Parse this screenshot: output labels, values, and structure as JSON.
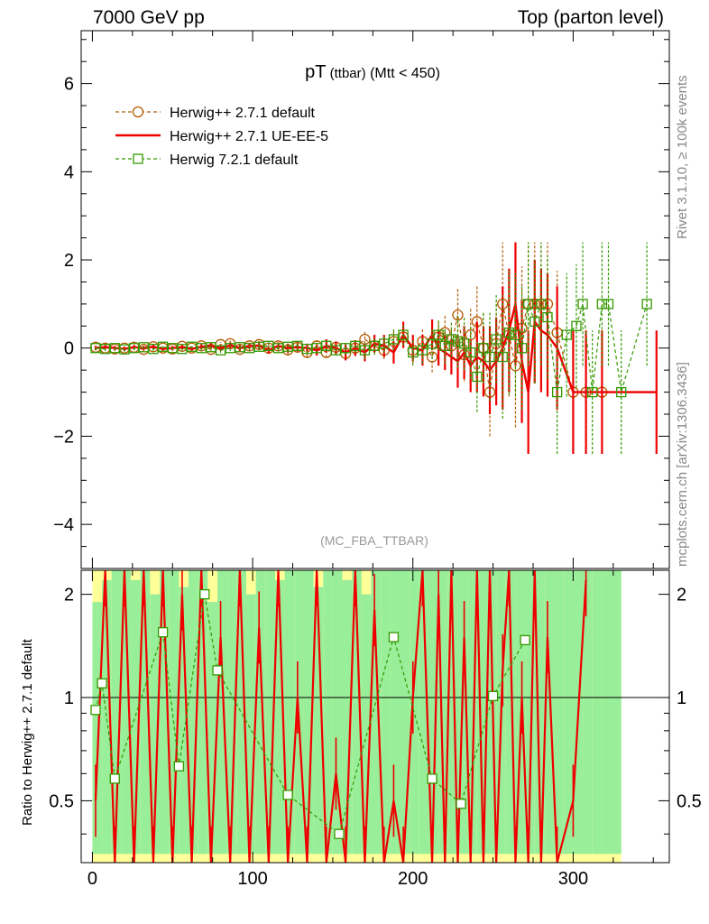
{
  "header": {
    "left": "7000 GeV pp",
    "right": "Top (parton level)"
  },
  "side_labels": {
    "rivet": "Rivet 3.1.10, ≥ 100k events",
    "mcplots": "mcplots.cern.ch [arXiv:1306.3436]"
  },
  "chart_data": [
    {
      "type": "line",
      "panel": "main",
      "title_main": "pT",
      "title_paren": "(ttbar)",
      "title_suffix": "(Mtt < 450)",
      "analysis_label": "(MC_FBA_TTBAR)",
      "xlim": [
        -7,
        360
      ],
      "ylim": [
        -5,
        7.2
      ],
      "yticks": [
        -4,
        -2,
        0,
        2,
        4,
        6
      ],
      "yticklabels": [
        "−4",
        "−2",
        "0",
        "2",
        "4",
        "6"
      ],
      "series": [
        {
          "name": "Herwig++ 2.7.1 default",
          "color": "#b35900",
          "style": "dashed-circle",
          "x": [
            2,
            8,
            14,
            20,
            26,
            32,
            38,
            44,
            50,
            56,
            62,
            68,
            74,
            80,
            86,
            92,
            98,
            104,
            110,
            116,
            122,
            128,
            134,
            140,
            146,
            152,
            158,
            164,
            170,
            176,
            182,
            188,
            194,
            200,
            206,
            212,
            216,
            220,
            224,
            228,
            232,
            236,
            240,
            244,
            248,
            252,
            256,
            260,
            264,
            268,
            272,
            276,
            280,
            284,
            290,
            300,
            308,
            318
          ],
          "y": [
            0.02,
            0.0,
            -0.02,
            0.0,
            0.02,
            -0.03,
            0.03,
            0.0,
            -0.02,
            0.04,
            0.0,
            0.05,
            -0.03,
            0.08,
            0.1,
            -0.03,
            0.05,
            0.08,
            0.0,
            0.05,
            -0.04,
            0.02,
            -0.1,
            0.05,
            -0.1,
            0.02,
            -0.12,
            0.0,
            0.2,
            0.05,
            -0.05,
            0.15,
            0.25,
            -0.05,
            0.15,
            -0.2,
            0.25,
            0.35,
            0.05,
            0.75,
            -0.15,
            0.3,
            0.6,
            0.0,
            -1.0,
            0.1,
            1.0,
            0.3,
            -0.4,
            0.45,
            1.0,
            1.0,
            1.0,
            1.0,
            0.35,
            -1.0,
            -1.0,
            -1.0
          ],
          "err": [
            0.05,
            0.05,
            0.05,
            0.05,
            0.05,
            0.05,
            0.05,
            0.05,
            0.05,
            0.05,
            0.05,
            0.06,
            0.06,
            0.06,
            0.07,
            0.07,
            0.07,
            0.08,
            0.08,
            0.08,
            0.1,
            0.1,
            0.1,
            0.12,
            0.12,
            0.12,
            0.15,
            0.15,
            0.2,
            0.2,
            0.2,
            0.25,
            0.25,
            0.3,
            0.3,
            0.35,
            0.35,
            0.4,
            0.4,
            0.6,
            0.6,
            0.6,
            0.8,
            0.8,
            1.0,
            1.0,
            1.4,
            1.4,
            1.4,
            1.4,
            1.4,
            1.4,
            1.4,
            1.4,
            1.4,
            1.4,
            1.4,
            1.4
          ]
        },
        {
          "name": "Herwig++ 2.7.1 UE-EE-5",
          "color": "#ee0000",
          "style": "solid",
          "x": [
            2,
            8,
            14,
            20,
            26,
            32,
            38,
            44,
            50,
            56,
            62,
            68,
            74,
            80,
            86,
            92,
            98,
            104,
            110,
            116,
            122,
            128,
            134,
            140,
            146,
            152,
            158,
            164,
            170,
            176,
            182,
            188,
            194,
            200,
            206,
            212,
            216,
            220,
            224,
            228,
            232,
            236,
            240,
            244,
            248,
            252,
            256,
            260,
            264,
            268,
            272,
            276,
            280,
            284,
            290,
            300,
            308,
            318,
            352
          ],
          "y": [
            0.0,
            0.02,
            0.0,
            -0.02,
            0.02,
            0.0,
            0.03,
            -0.02,
            0.0,
            0.02,
            -0.02,
            0.03,
            0.05,
            0.0,
            0.06,
            0.0,
            0.05,
            0.05,
            -0.05,
            0.05,
            0.0,
            0.02,
            0.0,
            -0.05,
            0.05,
            0.0,
            -0.1,
            0.0,
            -0.1,
            0.1,
            0.05,
            -0.1,
            0.3,
            0.0,
            -0.05,
            0.3,
            0.0,
            -0.1,
            -0.2,
            -0.3,
            -0.1,
            -0.4,
            -0.2,
            -0.3,
            -0.5,
            -0.3,
            0.0,
            0.4,
            1.0,
            -0.3,
            -1.0,
            0.6,
            0.4,
            0.3,
            0.0,
            -1.0,
            -1.0,
            -1.0,
            -1.0
          ],
          "err": [
            0.05,
            0.05,
            0.05,
            0.05,
            0.05,
            0.05,
            0.05,
            0.05,
            0.05,
            0.05,
            0.05,
            0.06,
            0.06,
            0.06,
            0.07,
            0.07,
            0.07,
            0.08,
            0.08,
            0.08,
            0.1,
            0.1,
            0.1,
            0.12,
            0.15,
            0.15,
            0.18,
            0.18,
            0.2,
            0.2,
            0.25,
            0.25,
            0.3,
            0.3,
            0.35,
            0.35,
            0.4,
            0.4,
            0.4,
            0.6,
            0.6,
            0.6,
            0.8,
            0.8,
            1.0,
            1.0,
            1.4,
            1.4,
            1.4,
            1.4,
            1.4,
            1.4,
            1.4,
            1.4,
            1.4,
            1.4,
            1.4,
            1.4,
            1.4
          ]
        },
        {
          "name": "Herwig 7.2.1 default",
          "color": "#339900",
          "style": "dashed-square",
          "x": [
            2,
            8,
            14,
            20,
            26,
            32,
            38,
            44,
            50,
            56,
            62,
            68,
            74,
            80,
            86,
            92,
            98,
            104,
            110,
            116,
            122,
            128,
            134,
            140,
            146,
            152,
            158,
            164,
            170,
            176,
            182,
            188,
            194,
            200,
            206,
            212,
            216,
            220,
            224,
            228,
            232,
            236,
            240,
            244,
            248,
            252,
            256,
            260,
            264,
            268,
            272,
            276,
            280,
            284,
            290,
            296,
            302,
            306,
            312,
            318,
            322,
            330,
            346
          ],
          "y": [
            0.0,
            -0.02,
            0.0,
            -0.03,
            0.0,
            0.02,
            -0.02,
            0.03,
            0.0,
            -0.02,
            0.03,
            0.0,
            0.02,
            -0.05,
            0.0,
            0.02,
            0.0,
            0.03,
            0.05,
            0.0,
            0.03,
            0.05,
            -0.02,
            0.0,
            0.05,
            -0.05,
            0.0,
            0.05,
            -0.05,
            0.05,
            0.1,
            0.2,
            0.3,
            -0.1,
            -0.05,
            0.1,
            0.3,
            0.05,
            0.2,
            0.15,
            0.1,
            -0.1,
            -0.65,
            0.0,
            -0.2,
            0.2,
            -0.2,
            0.35,
            0.3,
            0.0,
            1.0,
            0.6,
            1.0,
            0.7,
            -1.0,
            0.3,
            0.5,
            1.0,
            -1.0,
            1.0,
            1.0,
            -1.0,
            1.0
          ],
          "err": [
            0.05,
            0.05,
            0.05,
            0.05,
            0.05,
            0.05,
            0.05,
            0.05,
            0.05,
            0.05,
            0.05,
            0.06,
            0.06,
            0.06,
            0.07,
            0.07,
            0.07,
            0.08,
            0.08,
            0.08,
            0.1,
            0.1,
            0.1,
            0.12,
            0.12,
            0.12,
            0.15,
            0.15,
            0.2,
            0.2,
            0.2,
            0.25,
            0.25,
            0.3,
            0.3,
            0.35,
            0.35,
            0.4,
            0.4,
            0.6,
            0.6,
            0.6,
            0.8,
            0.8,
            1.0,
            1.0,
            1.4,
            1.4,
            1.4,
            1.4,
            1.4,
            1.4,
            1.4,
            1.4,
            1.4,
            1.4,
            1.4,
            1.4,
            1.4,
            1.4,
            1.4,
            1.4,
            1.4
          ]
        }
      ]
    },
    {
      "type": "line",
      "panel": "ratio",
      "ylabel": "Ratio to Herwig++ 2.7.1 default",
      "xlim": [
        -7,
        360
      ],
      "ylim": [
        0.33,
        2.35
      ],
      "ylog": true,
      "reference": 1.0,
      "yticks": [
        0.5,
        1,
        2
      ],
      "yticklabels": [
        "0.5",
        "1",
        "2"
      ],
      "xticks": [
        0,
        100,
        200,
        300
      ],
      "xticklabels": [
        "0",
        "100",
        "200",
        "300"
      ],
      "band_colors": {
        "inner": "#99ee99",
        "outer": "#ffff99"
      },
      "band_x": [
        0,
        6,
        12,
        18,
        24,
        30,
        36,
        42,
        48,
        54,
        60,
        66,
        72,
        78,
        84,
        90,
        96,
        102,
        108,
        114,
        120,
        126,
        132,
        138,
        144,
        150,
        156,
        162,
        168,
        174,
        180,
        186,
        192,
        198,
        204,
        210,
        216,
        222,
        228,
        234,
        240,
        246,
        252,
        258,
        264,
        270,
        276,
        282,
        288,
        294,
        300,
        306,
        312,
        318,
        324
      ],
      "band_inner": [
        [
          0.35,
          1.9
        ],
        [
          0.35,
          2.2
        ],
        [
          0.35,
          2.35
        ],
        [
          0.35,
          2.35
        ],
        [
          0.35,
          2.2
        ],
        [
          0.35,
          2.35
        ],
        [
          0.35,
          2.0
        ],
        [
          0.35,
          2.35
        ],
        [
          0.35,
          2.35
        ],
        [
          0.35,
          2.1
        ],
        [
          0.35,
          2.35
        ],
        [
          0.35,
          2.35
        ],
        [
          0.35,
          1.9
        ],
        [
          0.35,
          2.35
        ],
        [
          0.35,
          2.35
        ],
        [
          0.35,
          2.35
        ],
        [
          0.35,
          2.0
        ],
        [
          0.35,
          2.35
        ],
        [
          0.35,
          2.35
        ],
        [
          0.35,
          2.2
        ],
        [
          0.35,
          2.35
        ],
        [
          0.35,
          2.35
        ],
        [
          0.35,
          2.35
        ],
        [
          0.35,
          2.1
        ],
        [
          0.35,
          2.35
        ],
        [
          0.35,
          2.35
        ],
        [
          0.35,
          2.2
        ],
        [
          0.35,
          2.35
        ],
        [
          0.35,
          2.0
        ],
        [
          0.35,
          2.35
        ],
        [
          0.35,
          2.35
        ],
        [
          0.35,
          2.35
        ],
        [
          0.35,
          2.35
        ],
        [
          0.35,
          2.35
        ],
        [
          0.35,
          2.35
        ],
        [
          0.35,
          2.35
        ],
        [
          0.35,
          2.35
        ],
        [
          0.35,
          2.35
        ],
        [
          0.35,
          2.35
        ],
        [
          0.35,
          2.35
        ],
        [
          0.35,
          2.35
        ],
        [
          0.35,
          2.35
        ],
        [
          0.35,
          2.35
        ],
        [
          0.35,
          2.35
        ],
        [
          0.35,
          2.35
        ],
        [
          0.35,
          2.35
        ],
        [
          0.35,
          2.35
        ],
        [
          0.35,
          2.35
        ],
        [
          0.35,
          2.35
        ],
        [
          0.35,
          2.35
        ],
        [
          0.35,
          2.35
        ],
        [
          0.35,
          2.35
        ],
        [
          0.35,
          2.35
        ],
        [
          0.35,
          2.35
        ],
        [
          0.35,
          2.35
        ]
      ],
      "series": [
        {
          "name": "Herwig++ 2.7.1 UE-EE-5",
          "color": "#ee0000",
          "x": [
            2,
            8,
            14,
            20,
            26,
            32,
            38,
            44,
            50,
            56,
            62,
            68,
            74,
            80,
            86,
            92,
            98,
            104,
            110,
            116,
            122,
            128,
            134,
            140,
            146,
            152,
            158,
            164,
            170,
            176,
            182,
            188,
            194,
            200,
            206,
            212,
            216,
            220,
            224,
            228,
            232,
            236,
            240,
            244,
            248,
            252,
            256,
            260,
            264,
            268,
            272,
            276,
            280,
            284,
            290,
            300,
            308
          ],
          "y": [
            0.5,
            2.35,
            0.33,
            2.35,
            0.33,
            2.35,
            0.33,
            2.35,
            0.33,
            2.0,
            0.33,
            2.35,
            0.33,
            1.5,
            0.33,
            2.35,
            0.33,
            1.6,
            0.33,
            2.35,
            0.33,
            1.0,
            0.33,
            2.35,
            0.33,
            0.6,
            0.33,
            2.35,
            0.33,
            1.8,
            0.33,
            0.5,
            0.33,
            1.0,
            2.35,
            0.33,
            2.0,
            0.33,
            2.35,
            0.33,
            1.5,
            0.33,
            2.35,
            0.33,
            2.35,
            0.33,
            1.2,
            2.35,
            0.33,
            1.0,
            0.33,
            2.35,
            0.33,
            1.5,
            0.33,
            0.5,
            2.2
          ]
        },
        {
          "name": "Herwig 7.2.1 default",
          "color": "#339900",
          "x": [
            2,
            6,
            14,
            44,
            54,
            70,
            78,
            122,
            154,
            188,
            212,
            230,
            250,
            270
          ],
          "y": [
            0.92,
            1.1,
            0.58,
            1.55,
            0.63,
            2.0,
            1.2,
            0.52,
            0.4,
            1.5,
            0.58,
            0.49,
            1.01,
            1.47
          ]
        }
      ]
    }
  ]
}
